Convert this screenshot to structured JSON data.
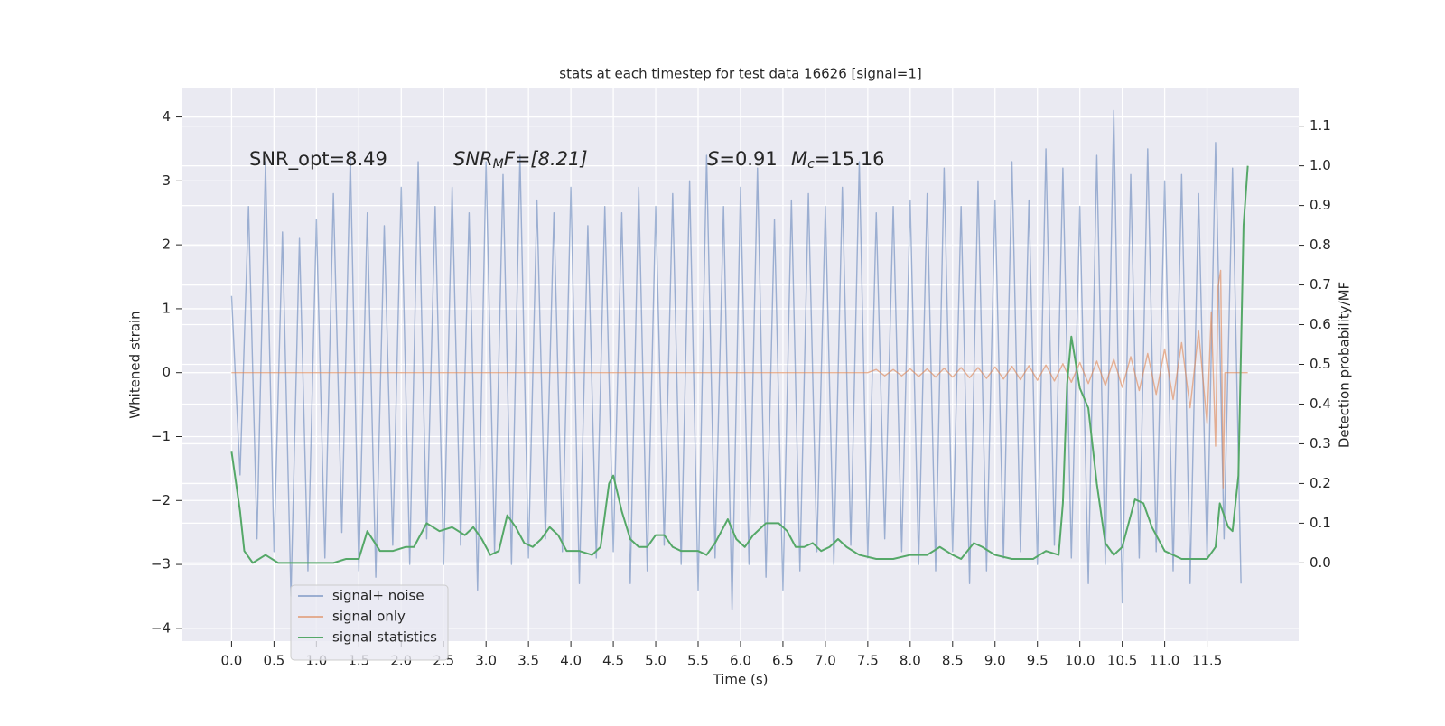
{
  "chart_data": {
    "type": "line",
    "title": "stats at each timestep for test data 16626 [signal=1]",
    "x_label": "Time (s)",
    "y_label": "Whitened strain",
    "y2_label": "Detection probability/MF",
    "annotations": [
      [
        "SNR_opt=8.49"
      ],
      [
        "SNR",
        "M",
        "F=[8.21]"
      ],
      [
        "S",
        "=0.91"
      ],
      [
        "M",
        "c",
        "=15.16"
      ]
    ],
    "xlim": [
      -0.59,
      12.58
    ],
    "xticks": [
      {
        "value": 0,
        "label": "0.0"
      },
      0.5,
      {
        "value": 1,
        "label": "1.0"
      },
      1.5,
      {
        "value": 2,
        "label": "2.0"
      },
      2.5,
      {
        "value": 3,
        "label": "3.0"
      },
      3.5,
      {
        "value": 4,
        "label": "4.0"
      },
      4.5,
      {
        "value": 5,
        "label": "5.0"
      },
      5.5,
      {
        "value": 6,
        "label": "6.0"
      },
      6.5,
      {
        "value": 7,
        "label": "7.0"
      },
      7.5,
      {
        "value": 8,
        "label": "8.0"
      },
      8.5,
      {
        "value": 9,
        "label": "9.0"
      },
      9.5,
      {
        "value": 10,
        "label": "10.0"
      },
      10.5,
      {
        "value": 11,
        "label": "11.0"
      },
      11.5
    ],
    "ylim": [
      -4.2,
      4.46
    ],
    "yticks": [
      {
        "value": -4,
        "label": "−4"
      },
      {
        "value": -3,
        "label": "−3"
      },
      {
        "value": -2,
        "label": "−2"
      },
      {
        "value": -1,
        "label": "−1"
      },
      0,
      1,
      2,
      3,
      4
    ],
    "y2lim": [
      -0.197,
      1.197
    ],
    "y2ticks": [
      {
        "value": 0,
        "label": "0.0"
      },
      0.1,
      0.2,
      0.3,
      0.4,
      0.5,
      0.6,
      0.7,
      0.8,
      0.9,
      {
        "value": 1,
        "label": "1.0"
      },
      1.1
    ],
    "grid": true,
    "legend": "lower left",
    "series": [
      {
        "name": "signal+ noise",
        "color": "#4c72b0",
        "x": [
          0,
          0.1,
          0.2,
          0.3,
          0.4,
          0.5,
          0.6,
          0.7,
          0.8,
          0.9,
          1,
          1.1,
          1.2,
          1.3,
          1.4,
          1.5,
          1.6,
          1.7,
          1.8,
          1.9,
          2,
          2.1,
          2.2,
          2.3,
          2.4,
          2.5,
          2.6,
          2.7,
          2.8,
          2.9,
          3,
          3.1,
          3.2,
          3.3,
          3.4,
          3.5,
          3.6,
          3.7,
          3.8,
          3.9,
          4,
          4.1,
          4.2,
          4.3,
          4.4,
          4.5,
          4.6,
          4.7,
          4.8,
          4.9,
          5,
          5.1,
          5.2,
          5.3,
          5.4,
          5.5,
          5.6,
          5.7,
          5.8,
          5.9,
          6,
          6.1,
          6.2,
          6.3,
          6.4,
          6.5,
          6.6,
          6.7,
          6.8,
          6.9,
          7,
          7.1,
          7.2,
          7.3,
          7.4,
          7.5,
          7.6,
          7.7,
          7.8,
          7.9,
          8,
          8.1,
          8.2,
          8.3,
          8.4,
          8.5,
          8.6,
          8.7,
          8.8,
          8.9,
          9,
          9.1,
          9.2,
          9.3,
          9.4,
          9.5,
          9.6,
          9.7,
          9.8,
          9.9,
          10,
          10.1,
          10.2,
          10.3,
          10.4,
          10.5,
          10.6,
          10.7,
          10.8,
          10.9,
          11,
          11.1,
          11.2,
          11.3,
          11.4,
          11.5,
          11.6,
          11.7,
          11.8,
          11.9
        ],
        "values": [
          1.2,
          -1.6,
          2.6,
          -2.6,
          3.3,
          -2.8,
          2.2,
          -3.5,
          2.1,
          -3.1,
          2.4,
          -2.9,
          2.8,
          -2.5,
          3.4,
          -3.1,
          2.5,
          -3.2,
          2.3,
          -2.7,
          2.9,
          -3.0,
          3.3,
          -2.6,
          2.6,
          -3.0,
          2.9,
          -2.7,
          2.5,
          -3.4,
          3.3,
          -2.8,
          3.1,
          -3.0,
          3.4,
          -2.9,
          2.7,
          -2.6,
          2.5,
          -2.8,
          2.9,
          -3.3,
          2.3,
          -2.9,
          2.6,
          -2.8,
          2.5,
          -3.3,
          2.9,
          -3.1,
          2.6,
          -2.7,
          2.8,
          -3.0,
          3.0,
          -3.4,
          3.4,
          -2.9,
          2.6,
          -3.7,
          2.9,
          -3.0,
          3.2,
          -3.2,
          2.4,
          -3.4,
          2.7,
          -3.1,
          2.8,
          -2.8,
          2.6,
          -3.0,
          2.9,
          -2.7,
          3.3,
          -2.9,
          2.5,
          -2.6,
          2.6,
          -2.8,
          2.7,
          -3.0,
          2.8,
          -3.1,
          3.2,
          -2.8,
          2.6,
          -3.3,
          3.0,
          -3.1,
          2.7,
          -2.9,
          3.3,
          -2.8,
          2.7,
          -3.0,
          3.5,
          -2.7,
          3.2,
          -2.9,
          2.6,
          -3.3,
          3.4,
          -3.0,
          4.1,
          -3.6,
          3.1,
          -2.9,
          3.5,
          -2.8,
          3.0,
          -3.1,
          3.1,
          -3.3,
          2.8,
          -2.9,
          3.6,
          -2.6,
          3.2,
          -3.3
        ]
      },
      {
        "name": "signal only",
        "color": "#dd8452",
        "x": [
          0,
          7.5,
          7.6,
          7.7,
          7.8,
          7.9,
          8,
          8.1,
          8.2,
          8.3,
          8.4,
          8.5,
          8.6,
          8.7,
          8.8,
          8.9,
          9,
          9.1,
          9.2,
          9.3,
          9.4,
          9.5,
          9.6,
          9.7,
          9.8,
          9.9,
          10,
          10.1,
          10.2,
          10.3,
          10.4,
          10.5,
          10.6,
          10.7,
          10.8,
          10.9,
          11,
          11.1,
          11.2,
          11.3,
          11.4,
          11.5,
          11.55,
          11.6,
          11.63,
          11.66,
          11.69,
          11.71,
          11.98
        ],
        "values": [
          0,
          0,
          0.05,
          -0.05,
          0.05,
          -0.05,
          0.06,
          -0.06,
          0.06,
          -0.07,
          0.07,
          -0.07,
          0.08,
          -0.08,
          0.08,
          -0.09,
          0.09,
          -0.1,
          0.1,
          -0.11,
          0.11,
          -0.12,
          0.12,
          -0.13,
          0.14,
          -0.15,
          0.16,
          -0.17,
          0.18,
          -0.2,
          0.21,
          -0.23,
          0.25,
          -0.28,
          0.3,
          -0.34,
          0.37,
          -0.42,
          0.47,
          -0.55,
          0.65,
          -0.8,
          0.95,
          -1.15,
          1.35,
          1.6,
          -1.8,
          0,
          0
        ]
      },
      {
        "name": "signal statistics",
        "color": "#55a868",
        "axis": "y2",
        "x": [
          0,
          0.1,
          0.15,
          0.25,
          0.4,
          0.55,
          0.8,
          1,
          1.2,
          1.35,
          1.5,
          1.6,
          1.75,
          1.9,
          2.05,
          2.15,
          2.3,
          2.45,
          2.6,
          2.75,
          2.85,
          2.95,
          3.05,
          3.15,
          3.25,
          3.35,
          3.45,
          3.55,
          3.65,
          3.75,
          3.85,
          3.95,
          4.1,
          4.25,
          4.35,
          4.45,
          4.5,
          4.6,
          4.7,
          4.8,
          4.9,
          5,
          5.1,
          5.2,
          5.3,
          5.5,
          5.6,
          5.7,
          5.85,
          5.95,
          6.05,
          6.15,
          6.3,
          6.45,
          6.55,
          6.65,
          6.75,
          6.85,
          6.95,
          7.05,
          7.15,
          7.25,
          7.4,
          7.6,
          7.8,
          8,
          8.2,
          8.35,
          8.5,
          8.6,
          8.75,
          8.85,
          9,
          9.2,
          9.45,
          9.6,
          9.75,
          9.8,
          9.85,
          9.9,
          10,
          10.1,
          10.2,
          10.3,
          10.4,
          10.5,
          10.65,
          10.75,
          10.85,
          11,
          11.2,
          11.5,
          11.6,
          11.65,
          11.75,
          11.8,
          11.87,
          11.93,
          11.98
        ],
        "values": [
          0.28,
          0.13,
          0.03,
          0,
          0.02,
          0,
          0,
          0,
          0,
          0.01,
          0.01,
          0.08,
          0.03,
          0.03,
          0.04,
          0.04,
          0.1,
          0.08,
          0.09,
          0.07,
          0.09,
          0.06,
          0.02,
          0.03,
          0.12,
          0.09,
          0.05,
          0.04,
          0.06,
          0.09,
          0.07,
          0.03,
          0.03,
          0.02,
          0.04,
          0.2,
          0.22,
          0.13,
          0.06,
          0.04,
          0.04,
          0.07,
          0.07,
          0.04,
          0.03,
          0.03,
          0.02,
          0.05,
          0.11,
          0.06,
          0.04,
          0.07,
          0.1,
          0.1,
          0.08,
          0.04,
          0.04,
          0.05,
          0.03,
          0.04,
          0.06,
          0.04,
          0.02,
          0.01,
          0.01,
          0.02,
          0.02,
          0.04,
          0.02,
          0.01,
          0.05,
          0.04,
          0.02,
          0.01,
          0.01,
          0.03,
          0.02,
          0.15,
          0.45,
          0.57,
          0.44,
          0.39,
          0.2,
          0.05,
          0.02,
          0.04,
          0.16,
          0.15,
          0.09,
          0.03,
          0.01,
          0.01,
          0.04,
          0.15,
          0.09,
          0.08,
          0.22,
          0.85,
          1.0
        ]
      }
    ]
  }
}
